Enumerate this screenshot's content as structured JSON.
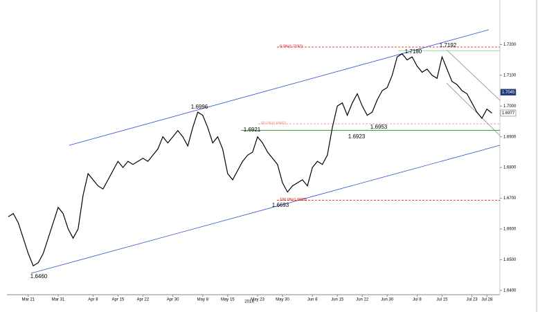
{
  "chart_data": {
    "type": "line",
    "categories": [
      null,
      null,
      null,
      null,
      "Mar 21",
      null,
      null,
      null,
      null,
      null,
      "Mar 31",
      null,
      null,
      null,
      null,
      null,
      null,
      "Apr 8",
      null,
      null,
      null,
      null,
      "Apr 15",
      null,
      null,
      null,
      null,
      "Apr 22",
      null,
      null,
      null,
      null,
      null,
      "Apr 30",
      null,
      null,
      null,
      null,
      null,
      "May 8",
      null,
      null,
      null,
      null,
      "May 15",
      null,
      null,
      null,
      null,
      null,
      "May 23",
      null,
      null,
      null,
      null,
      "May 30",
      null,
      null,
      null,
      null,
      null,
      "Jun 8",
      null,
      null,
      null,
      null,
      "Jun 15",
      null,
      null,
      null,
      null,
      "Jun 22",
      null,
      null,
      null,
      null,
      "Jun 30",
      null,
      null,
      null,
      null,
      null,
      "Jul 8",
      null,
      null,
      null,
      null,
      "Jul 15",
      null,
      null,
      null,
      null,
      null,
      "Jul 23",
      null,
      null,
      "Jul 28",
      null
    ],
    "x_sublabel": "2014",
    "series": [
      {
        "color": "#000000",
        "values": [
          1.664,
          1.665,
          1.662,
          1.657,
          1.652,
          1.648,
          1.649,
          1.652,
          1.657,
          1.662,
          1.667,
          1.665,
          1.66,
          1.657,
          1.66,
          1.671,
          1.678,
          1.676,
          1.674,
          1.673,
          1.676,
          1.679,
          1.682,
          1.68,
          1.682,
          1.681,
          1.682,
          1.683,
          1.682,
          1.684,
          1.686,
          1.69,
          1.688,
          1.69,
          1.692,
          1.69,
          1.687,
          1.693,
          1.698,
          1.697,
          1.693,
          1.688,
          1.69,
          1.686,
          1.678,
          1.676,
          1.679,
          1.682,
          1.684,
          1.685,
          1.69,
          1.688,
          1.685,
          1.683,
          1.681,
          1.675,
          1.672,
          1.674,
          1.675,
          1.676,
          1.674,
          1.68,
          1.682,
          1.681,
          1.684,
          1.693,
          1.7,
          1.701,
          1.697,
          1.701,
          1.704,
          1.7,
          1.697,
          1.698,
          1.702,
          1.705,
          1.706,
          1.71,
          1.716,
          1.717,
          1.715,
          1.716,
          1.713,
          1.711,
          1.712,
          1.71,
          1.709,
          1.716,
          1.712,
          1.708,
          1.707,
          1.705,
          1.704,
          1.701,
          1.698,
          1.696,
          1.699,
          1.6977
        ]
      }
    ],
    "ylim": [
      1.6386,
      1.7345
    ],
    "yticks": [
      {
        "value": 1.64,
        "label": "1.6400"
      },
      {
        "value": 1.65,
        "label": "1.6500"
      },
      {
        "value": 1.66,
        "label": "1.6600"
      },
      {
        "value": 1.67,
        "label": "1.6700"
      },
      {
        "value": 1.68,
        "label": "1.6800"
      },
      {
        "value": 1.69,
        "label": "1.6900"
      },
      {
        "value": 1.7,
        "label": "1.7000"
      },
      {
        "value": 1.71,
        "label": "1.7100"
      },
      {
        "value": 1.72,
        "label": "1.7200"
      }
    ],
    "point_labels": [
      "1.6460",
      "1.6996",
      "1.6921",
      "1.6693",
      "1.6923",
      "1.6953",
      "1.7180",
      "1.7192"
    ],
    "fib_levels": [
      {
        "value": 1.7192,
        "label": "0.0%(1.7192)",
        "color": "#e00000"
      },
      {
        "value": 1.6942,
        "label": "50.0%(1.6942)",
        "color": "#f08080"
      },
      {
        "value": 1.6693,
        "label": "100.0%(1.6693)",
        "color": "#e00000"
      }
    ],
    "support_lines": [
      {
        "value": 1.6921,
        "color": "#2a9a2a"
      },
      {
        "value": 1.718,
        "color": "#9bd39b"
      }
    ],
    "price_tags": [
      {
        "value": 1.7045,
        "label": "1.7045",
        "color": "#1f3a7a",
        "text_color": "#ffffff"
      },
      {
        "value": 1.6977,
        "label": "1.6977",
        "color": "#ffffff",
        "text_color": "#000000"
      }
    ]
  }
}
